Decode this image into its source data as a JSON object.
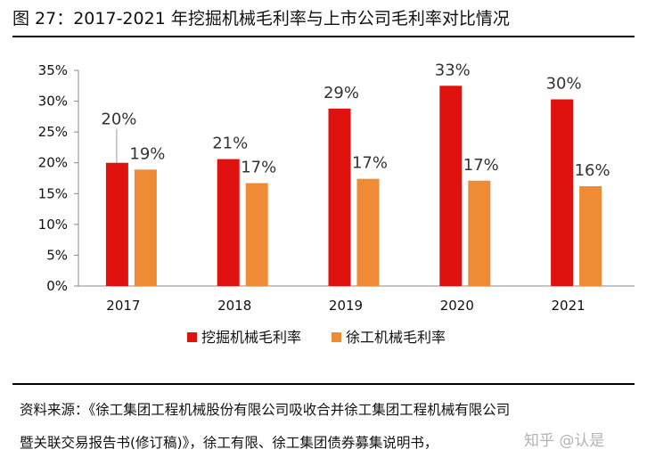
{
  "title": "图 27：2017-2021 年挖掘机械毛利率与上市公司毛利率对比情况",
  "source_line1": "资料来源：《徐工集团工程机械股份有限公司吸收合并徐工集团工程机械有限公司",
  "source_line2": "暨关联交易报告书(修订稿)》，徐工有限、徐工集团债券募集说明书，",
  "watermark": "知乎 @认是",
  "colors": {
    "series1": "#e0120f",
    "series2": "#ef8a35",
    "axis": "#888888"
  },
  "chart_data": {
    "type": "bar",
    "categories": [
      "2017",
      "2018",
      "2019",
      "2020",
      "2021"
    ],
    "series": [
      {
        "name": "挖掘机械毛利率",
        "values": [
          20,
          20.6,
          28.8,
          32.5,
          30.3
        ],
        "labels": [
          "20%",
          "21%",
          "29%",
          "33%",
          "30%"
        ]
      },
      {
        "name": "徐工机械毛利率",
        "values": [
          18.9,
          16.7,
          17.4,
          17.1,
          16.2
        ],
        "labels": [
          "19%",
          "17%",
          "17%",
          "17%",
          "16%"
        ]
      }
    ],
    "ylim": [
      0,
      35
    ],
    "yticks": [
      "0%",
      "5%",
      "10%",
      "15%",
      "20%",
      "25%",
      "30%",
      "35%"
    ],
    "legend_position": "bottom",
    "grid": false
  }
}
